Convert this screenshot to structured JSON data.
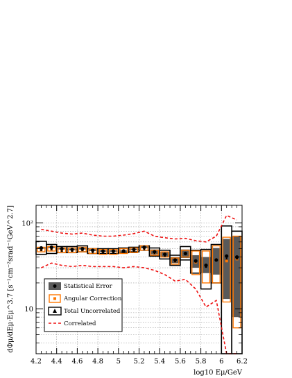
{
  "chart_data": {
    "type": "scatter",
    "xlabel": "log10 Eμ/GeV",
    "ylabel": "dΦμ/dEμ·Eμ^3.7 [s⁻¹cm⁻²srad⁻¹GeV^2.7]",
    "x_ticks": [
      "4.2",
      "4.4",
      "4.6",
      "4.8",
      "5",
      "5.2",
      "5.4",
      "5.6",
      "5.8",
      "6",
      "6.2"
    ],
    "y_ticks": [
      "10",
      "10²"
    ],
    "xlim": [
      4.2,
      6.2
    ],
    "ylim": [
      3,
      160
    ],
    "log_y": true,
    "grid": true,
    "legend_position": "lower-left",
    "x": [
      4.25,
      4.35,
      4.45,
      4.55,
      4.65,
      4.75,
      4.85,
      4.95,
      5.05,
      5.15,
      5.25,
      5.35,
      5.45,
      5.55,
      5.65,
      5.75,
      5.85,
      5.95,
      6.05,
      6.15
    ],
    "series": [
      {
        "name": "Statistical Error",
        "marker": "circle",
        "color": "#000000",
        "values": [
          51,
          52,
          50,
          49,
          50,
          48,
          47,
          47,
          47,
          49,
          52,
          46,
          43,
          37,
          44,
          36,
          32,
          37,
          41,
          40
        ],
        "err_low": [
          1,
          1,
          1,
          1,
          1,
          1,
          1,
          1,
          1,
          1,
          1.5,
          3,
          3,
          3,
          5,
          6,
          6,
          12,
          28,
          32
        ],
        "err_high": [
          1,
          1,
          1,
          1,
          1,
          1,
          1,
          1,
          1,
          1,
          1.5,
          3,
          3,
          3,
          5,
          6,
          8,
          14,
          24,
          30
        ]
      },
      {
        "name": "Angular Correction",
        "marker": "square",
        "color": "#ff7700",
        "values": [
          49,
          50,
          48,
          48,
          49,
          47,
          46,
          46,
          47,
          48,
          51,
          45,
          43,
          36,
          44,
          35,
          32,
          37,
          36,
          38
        ],
        "err_low": [
          3,
          3,
          3,
          3,
          3,
          3,
          3,
          3,
          3,
          3,
          3,
          3,
          3,
          3,
          4,
          10,
          12,
          17,
          24,
          32
        ],
        "err_high": [
          3,
          3,
          3,
          3,
          3,
          3,
          3,
          3,
          3,
          3,
          3,
          3,
          3,
          3,
          4,
          12,
          15,
          17,
          32,
          32
        ]
      },
      {
        "name": "Total Uncorrelated",
        "marker": "triangle",
        "color": "#000000",
        "values": [
          50,
          51,
          49,
          49,
          50,
          47,
          47,
          47,
          48,
          49,
          51,
          46,
          43,
          37,
          45,
          38,
          32,
          38,
          40,
          40
        ],
        "err_low": [
          7,
          7,
          4,
          4,
          4,
          3,
          3,
          3,
          3,
          3,
          3,
          5,
          5,
          5,
          8,
          12,
          15,
          18,
          37,
          37
        ],
        "err_high": [
          11,
          5,
          4,
          4,
          4,
          3,
          3,
          3,
          3,
          3,
          3,
          5,
          5,
          5,
          8,
          10,
          17,
          18,
          52,
          40
        ]
      },
      {
        "name": "Correlated",
        "line_style": "dashed",
        "color": "#ee1111",
        "upper": [
          84,
          80,
          76,
          74,
          76,
          72,
          70,
          70,
          72,
          75,
          80,
          70,
          67,
          65,
          66,
          62,
          60,
          70,
          122,
          108
        ],
        "lower": [
          30,
          34,
          32,
          31,
          32,
          31,
          31,
          31,
          30,
          31,
          30,
          28,
          25,
          21,
          22,
          17,
          10.5,
          12.5,
          3,
          3
        ]
      }
    ]
  }
}
